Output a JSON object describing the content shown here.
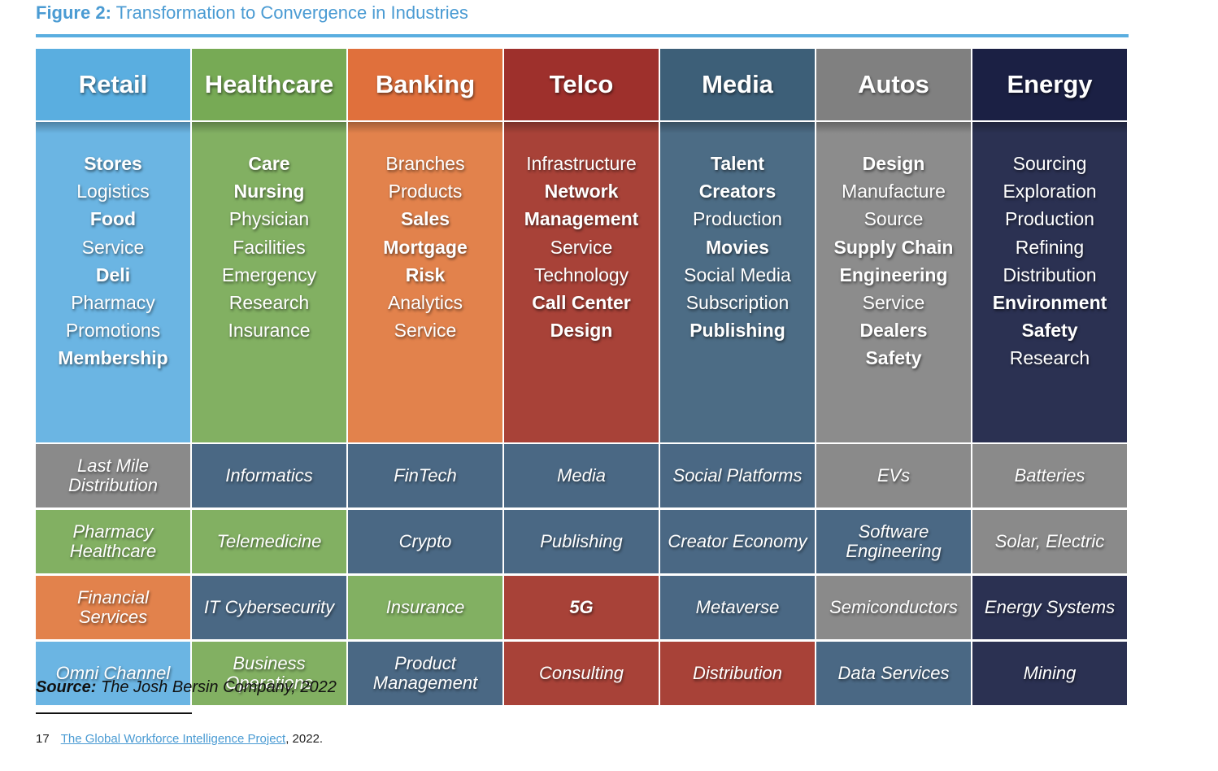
{
  "figure": {
    "label": "Figure 2:",
    "title": "Transformation to Convergence in Industries"
  },
  "colors": {
    "retail": "#5aaee0",
    "retail_body": "#6bb5e3",
    "healthcare": "#77aa55",
    "healthcare_body": "#82b062",
    "banking": "#e0703c",
    "banking_body": "#e2824c",
    "telco": "#9e302c",
    "telco_body": "#a84238",
    "media": "#3d5f78",
    "media_body": "#4c6c85",
    "autos": "#808080",
    "autos_body": "#8c8c8c",
    "energy": "#1b2044",
    "energy_body": "#2b3152",
    "grid_teal": "#4a6884",
    "grid_gray": "#8a8a8a",
    "grid_green": "#82b062",
    "grid_orange": "#e2824c",
    "grid_red": "#a84238",
    "grid_navy": "#2b3152",
    "grid_lightblue": "#6bb5e3"
  },
  "columns": [
    {
      "name": "Retail",
      "items": [
        {
          "text": "Stores",
          "bold": true
        },
        {
          "text": "Logistics",
          "bold": false
        },
        {
          "text": "Food",
          "bold": true
        },
        {
          "text": "Service",
          "bold": false
        },
        {
          "text": "Deli",
          "bold": true
        },
        {
          "text": "Pharmacy",
          "bold": false
        },
        {
          "text": "Promotions",
          "bold": false
        },
        {
          "text": "Membership",
          "bold": true
        }
      ]
    },
    {
      "name": "Healthcare",
      "items": [
        {
          "text": "Care",
          "bold": true
        },
        {
          "text": "Nursing",
          "bold": true
        },
        {
          "text": "Physician",
          "bold": false
        },
        {
          "text": "Facilities",
          "bold": false
        },
        {
          "text": "Emergency",
          "bold": false
        },
        {
          "text": "Research",
          "bold": false
        },
        {
          "text": "Insurance",
          "bold": false
        }
      ]
    },
    {
      "name": "Banking",
      "items": [
        {
          "text": "Branches",
          "bold": false
        },
        {
          "text": "Products",
          "bold": false
        },
        {
          "text": "Sales",
          "bold": true
        },
        {
          "text": "Mortgage",
          "bold": true
        },
        {
          "text": "Risk",
          "bold": true
        },
        {
          "text": "Analytics",
          "bold": false
        },
        {
          "text": "Service",
          "bold": false
        }
      ]
    },
    {
      "name": "Telco",
      "items": [
        {
          "text": "Infrastructure",
          "bold": false
        },
        {
          "text": "Network",
          "bold": true
        },
        {
          "text": "Management",
          "bold": true
        },
        {
          "text": "Service",
          "bold": false
        },
        {
          "text": "Technology",
          "bold": false
        },
        {
          "text": "Call Center",
          "bold": true
        },
        {
          "text": "Design",
          "bold": true
        }
      ]
    },
    {
      "name": "Media",
      "items": [
        {
          "text": "Talent",
          "bold": true
        },
        {
          "text": "Creators",
          "bold": true
        },
        {
          "text": "Production",
          "bold": false
        },
        {
          "text": "Movies",
          "bold": true
        },
        {
          "text": "Social Media",
          "bold": false
        },
        {
          "text": "Subscription",
          "bold": false
        },
        {
          "text": "Publishing",
          "bold": true
        }
      ]
    },
    {
      "name": "Autos",
      "items": [
        {
          "text": "Design",
          "bold": true
        },
        {
          "text": "Manufacture",
          "bold": false
        },
        {
          "text": "Source",
          "bold": false
        },
        {
          "text": "Supply Chain",
          "bold": true
        },
        {
          "text": "Engineering",
          "bold": true
        },
        {
          "text": "Service",
          "bold": false
        },
        {
          "text": "Dealers",
          "bold": true
        },
        {
          "text": "Safety",
          "bold": true
        }
      ]
    },
    {
      "name": "Energy",
      "items": [
        {
          "text": "Sourcing",
          "bold": false
        },
        {
          "text": "Exploration",
          "bold": false
        },
        {
          "text": "Production",
          "bold": false
        },
        {
          "text": "Refining",
          "bold": false
        },
        {
          "text": "Distribution",
          "bold": false
        },
        {
          "text": "Environment",
          "bold": true
        },
        {
          "text": "Safety",
          "bold": true
        },
        {
          "text": "Research",
          "bold": false
        }
      ]
    }
  ],
  "convergence_rows": [
    [
      {
        "text": "Last Mile Distribution",
        "color": "grid_gray"
      },
      {
        "text": "Informatics",
        "color": "grid_teal"
      },
      {
        "text": "FinTech",
        "color": "grid_teal"
      },
      {
        "text": "Media",
        "color": "grid_teal"
      },
      {
        "text": "Social Platforms",
        "color": "grid_teal"
      },
      {
        "text": "EVs",
        "color": "grid_gray"
      },
      {
        "text": "Batteries",
        "color": "grid_gray"
      }
    ],
    [
      {
        "text": "Pharmacy Healthcare",
        "color": "grid_green"
      },
      {
        "text": "Telemedicine",
        "color": "grid_green"
      },
      {
        "text": "Crypto",
        "color": "grid_teal"
      },
      {
        "text": "Publishing",
        "color": "grid_teal"
      },
      {
        "text": "Creator Economy",
        "color": "grid_teal"
      },
      {
        "text": "Software Engineering",
        "color": "grid_teal"
      },
      {
        "text": "Solar, Electric",
        "color": "grid_gray"
      }
    ],
    [
      {
        "text": "Financial Services",
        "color": "grid_orange"
      },
      {
        "text": "IT Cybersecurity",
        "color": "grid_teal"
      },
      {
        "text": "Insurance",
        "color": "grid_green"
      },
      {
        "text": "5G",
        "color": "grid_red",
        "bold": true
      },
      {
        "text": "Metaverse",
        "color": "grid_teal"
      },
      {
        "text": "Semiconductors",
        "color": "grid_gray"
      },
      {
        "text": "Energy Systems",
        "color": "grid_navy"
      }
    ],
    [
      {
        "text": "Omni Channel",
        "color": "grid_lightblue"
      },
      {
        "text": "Business Operations",
        "color": "grid_green"
      },
      {
        "text": "Product Management",
        "color": "grid_teal"
      },
      {
        "text": "Consulting",
        "color": "grid_red"
      },
      {
        "text": "Distribution",
        "color": "grid_red"
      },
      {
        "text": "Data Services",
        "color": "grid_teal"
      },
      {
        "text": "Mining",
        "color": "grid_navy"
      }
    ]
  ],
  "source": {
    "label": "Source:",
    "text": "The Josh Bersin Company, 2022"
  },
  "footnote": {
    "number": "17",
    "link_text": "The Global Workforce Intelligence Project",
    "suffix": ", 2022."
  }
}
